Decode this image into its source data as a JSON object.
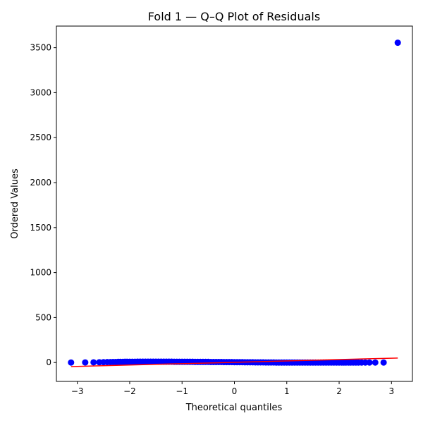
{
  "chart_data": {
    "type": "scatter",
    "title": "Fold 1 — Q–Q Plot of Residuals",
    "xlabel": "Theoretical quantiles",
    "ylabel": "Ordered Values",
    "xlim": [
      -3.4,
      3.4
    ],
    "ylim": [
      -210,
      3740
    ],
    "xticks": [
      -3,
      -2,
      -1,
      0,
      1,
      2,
      3
    ],
    "xtick_labels": [
      "−3",
      "−2",
      "−1",
      "0",
      "1",
      "2",
      "3"
    ],
    "yticks": [
      0,
      500,
      1000,
      1500,
      2000,
      2500,
      3000,
      3500
    ],
    "ytick_labels": [
      "0",
      "500",
      "1000",
      "1500",
      "2000",
      "2500",
      "3000",
      "3500"
    ],
    "grid": false,
    "series": [
      {
        "kind": "points",
        "color": "#0000ff",
        "x": [
          -3.12,
          -2.85,
          -2.69,
          -2.58,
          -2.5,
          -2.43,
          -2.37,
          -2.32,
          -2.27,
          -2.22,
          -2.18,
          -2.13,
          -2.09,
          -2.05,
          -2.0,
          -1.95,
          -1.9,
          -1.85,
          -1.8,
          -1.75,
          -1.7,
          -1.65,
          -1.6,
          -1.55,
          -1.5,
          -1.45,
          -1.4,
          -1.35,
          -1.3,
          -1.25,
          -1.2,
          -1.15,
          -1.1,
          -1.05,
          -1.0,
          -0.95,
          -0.9,
          -0.85,
          -0.8,
          -0.75,
          -0.7,
          -0.65,
          -0.6,
          -0.55,
          -0.5,
          -0.45,
          -0.4,
          -0.35,
          -0.3,
          -0.25,
          -0.2,
          -0.15,
          -0.1,
          -0.05,
          0.0,
          0.05,
          0.1,
          0.15,
          0.2,
          0.25,
          0.3,
          0.35,
          0.4,
          0.45,
          0.5,
          0.55,
          0.6,
          0.65,
          0.7,
          0.75,
          0.8,
          0.85,
          0.9,
          0.95,
          1.0,
          1.05,
          1.1,
          1.15,
          1.2,
          1.25,
          1.3,
          1.35,
          1.4,
          1.45,
          1.5,
          1.55,
          1.6,
          1.65,
          1.7,
          1.75,
          1.8,
          1.85,
          1.9,
          1.95,
          2.0,
          2.05,
          2.09,
          2.13,
          2.18,
          2.22,
          2.27,
          2.32,
          2.37,
          2.43,
          2.5,
          2.58,
          2.69,
          2.85,
          3.12
        ],
        "y": [
          0,
          1,
          2,
          3,
          4,
          5,
          5,
          6,
          6,
          7,
          7,
          7,
          8,
          8,
          8,
          8,
          8,
          9,
          9,
          9,
          9,
          9,
          9,
          9,
          9,
          9,
          9,
          9,
          9,
          9,
          9,
          8,
          8,
          8,
          8,
          8,
          8,
          8,
          8,
          7,
          7,
          7,
          7,
          7,
          7,
          6,
          6,
          6,
          6,
          6,
          5,
          5,
          5,
          5,
          4,
          4,
          4,
          4,
          3,
          3,
          3,
          3,
          2,
          2,
          2,
          2,
          1,
          1,
          1,
          1,
          0,
          0,
          0,
          0,
          0,
          0,
          0,
          0,
          0,
          0,
          0,
          0,
          0,
          0,
          0,
          0,
          0,
          0,
          0,
          0,
          0,
          0,
          0,
          0,
          0,
          0,
          0,
          0,
          0,
          0,
          0,
          0,
          0,
          0,
          0,
          0,
          0,
          0,
          3555
        ]
      },
      {
        "kind": "line",
        "color": "#ff0000",
        "x": [
          -3.12,
          3.12
        ],
        "y": [
          -45,
          50
        ]
      }
    ]
  }
}
